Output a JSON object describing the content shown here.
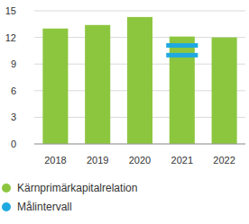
{
  "chart_data": {
    "type": "bar",
    "categories": [
      "2018",
      "2019",
      "2020",
      "2021",
      "2022"
    ],
    "series": [
      {
        "name": "Kärnprimärkapitalrelation",
        "type": "bar",
        "color": "#8cc63f",
        "values": [
          13.0,
          13.4,
          14.3,
          12.1,
          12.0
        ]
      },
      {
        "name": "Målintervall",
        "type": "range",
        "color": "#1fa9e1",
        "low": [
          null,
          null,
          null,
          10.0,
          null
        ],
        "high": [
          null,
          null,
          null,
          11.1,
          null
        ]
      }
    ],
    "ylim": [
      0,
      15
    ],
    "yticks": [
      0,
      3,
      6,
      9,
      12,
      15
    ],
    "grid": true,
    "legend": "bottom"
  }
}
